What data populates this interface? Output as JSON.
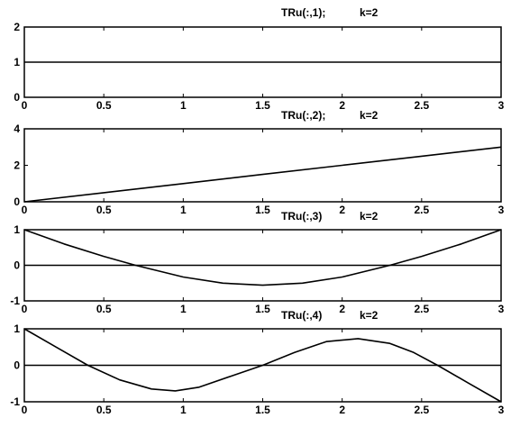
{
  "chart_data": [
    {
      "type": "line",
      "title": "TRu(:,1);",
      "title_note": "k=2",
      "xlim": [
        0,
        3
      ],
      "ylim": [
        0,
        2
      ],
      "xticks": [
        "0",
        "0.5",
        "1",
        "1.5",
        "2",
        "2.5",
        "3"
      ],
      "yticks": [
        "0",
        "1",
        "2"
      ],
      "zero_line": false,
      "series": [
        {
          "x": [
            0,
            0.5,
            1,
            1.5,
            2,
            2.5,
            3
          ],
          "y": [
            1,
            1,
            1,
            1,
            1,
            1,
            1
          ]
        }
      ]
    },
    {
      "type": "line",
      "title": "TRu(:,2);",
      "title_note": "k=2",
      "xlim": [
        0,
        3
      ],
      "ylim": [
        0,
        4
      ],
      "xticks": [
        "0",
        "0.5",
        "1",
        "1.5",
        "2",
        "2.5",
        "3"
      ],
      "yticks": [
        "0",
        "2",
        "4"
      ],
      "zero_line": false,
      "series": [
        {
          "x": [
            0,
            0.5,
            1,
            1.5,
            2,
            2.5,
            3
          ],
          "y": [
            0,
            0.5,
            1,
            1.5,
            2,
            2.5,
            3
          ]
        }
      ]
    },
    {
      "type": "line",
      "title": "TRu(:,3)",
      "title_note": "k=2",
      "xlim": [
        0,
        3
      ],
      "ylim": [
        -1,
        1
      ],
      "xticks": [
        "0",
        "0.5",
        "1",
        "1.5",
        "2",
        "2.5",
        "3"
      ],
      "yticks": [
        "-1",
        "0",
        "1"
      ],
      "zero_line": true,
      "series": [
        {
          "x": [
            0,
            0.25,
            0.5,
            0.7,
            1,
            1.25,
            1.5,
            1.75,
            2,
            2.3,
            2.5,
            2.75,
            3
          ],
          "y": [
            1,
            0.6,
            0.25,
            0,
            -0.33,
            -0.5,
            -0.56,
            -0.5,
            -0.33,
            0,
            0.25,
            0.6,
            1
          ]
        }
      ]
    },
    {
      "type": "line",
      "title": "TRu(:,4)",
      "title_note": "k=2",
      "xlim": [
        0,
        3
      ],
      "ylim": [
        -1,
        1
      ],
      "xticks": [
        "0",
        "0.5",
        "1",
        "1.5",
        "2",
        "2.5",
        "3"
      ],
      "yticks": [
        "-1",
        "0",
        "1"
      ],
      "zero_line": true,
      "series": [
        {
          "x": [
            0,
            0.2,
            0.4,
            0.6,
            0.8,
            0.95,
            1.1,
            1.3,
            1.5,
            1.7,
            1.9,
            2.1,
            2.3,
            2.45,
            2.6,
            2.8,
            3
          ],
          "y": [
            1,
            0.5,
            0,
            -0.4,
            -0.65,
            -0.7,
            -0.6,
            -0.3,
            0,
            0.35,
            0.65,
            0.73,
            0.6,
            0.35,
            0,
            -0.5,
            -1
          ]
        }
      ]
    }
  ]
}
